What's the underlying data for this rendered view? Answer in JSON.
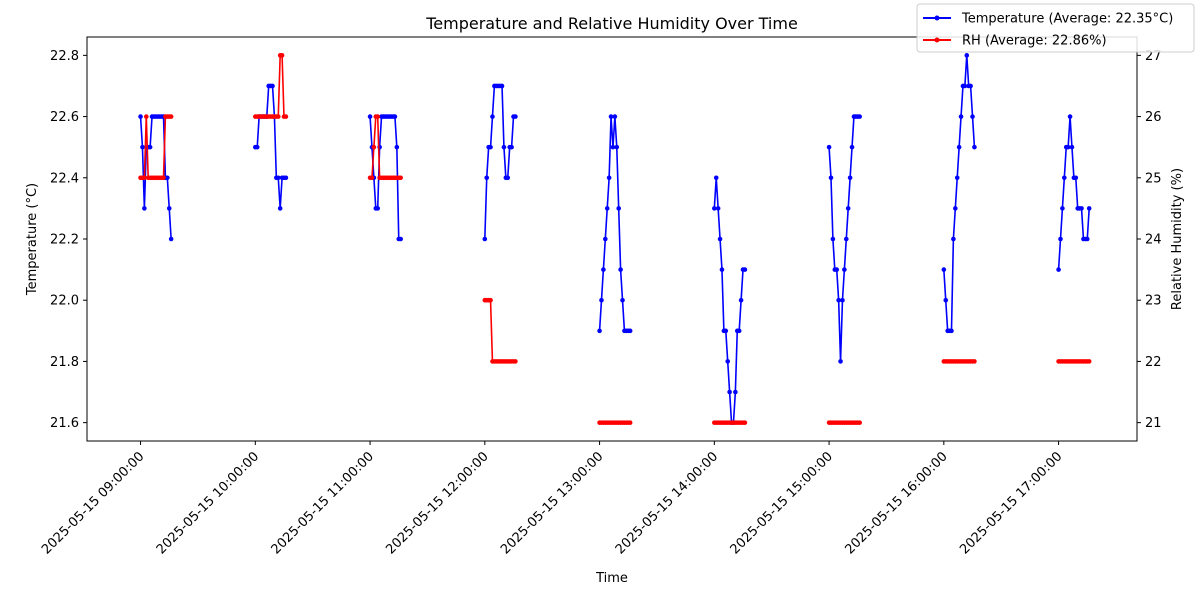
{
  "chart_data": {
    "type": "line",
    "title": "Temperature and Relative Humidity Over Time",
    "xlabel": "Time",
    "ylabel_left": "Temperature (°C)",
    "ylabel_right": "Relative Humidity (%)",
    "x_ticks": [
      "2025-05-15 09:00:00",
      "2025-05-15 10:00:00",
      "2025-05-15 11:00:00",
      "2025-05-15 12:00:00",
      "2025-05-15 13:00:00",
      "2025-05-15 14:00:00",
      "2025-05-15 15:00:00",
      "2025-05-15 16:00:00",
      "2025-05-15 17:00:00"
    ],
    "x_range": [
      "2025-05-15 08:32:00",
      "2025-05-15 17:41:00"
    ],
    "y_left_range": [
      21.54,
      22.86
    ],
    "y_left_ticks": [
      "21.6",
      "21.8",
      "22.0",
      "22.2",
      "22.4",
      "22.6",
      "22.8"
    ],
    "y_right_range": [
      20.7,
      27.3
    ],
    "y_right_ticks": [
      "21",
      "22",
      "23",
      "24",
      "25",
      "26",
      "27"
    ],
    "legend_position": "top-right",
    "grid": false,
    "series": [
      {
        "name": "Temperature (Average: 22.35°C)",
        "color": "#0000ff",
        "axis": "left",
        "segments": [
          {
            "x": [
              "09:00",
              "09:01",
              "09:02",
              "09:03",
              "09:04",
              "09:05",
              "09:06",
              "09:07",
              "09:08",
              "09:09",
              "09:10",
              "09:11",
              "09:12",
              "09:13",
              "09:14",
              "09:15",
              "09:16"
            ],
            "y": [
              22.6,
              22.5,
              22.3,
              22.5,
              22.5,
              22.5,
              22.6,
              22.6,
              22.6,
              22.6,
              22.6,
              22.6,
              22.6,
              22.4,
              22.4,
              22.3,
              22.2
            ]
          },
          {
            "x": [
              "10:00",
              "10:01",
              "10:02",
              "10:03",
              "10:04",
              "10:05",
              "10:06",
              "10:07",
              "10:08",
              "10:09",
              "10:10",
              "10:11",
              "10:12",
              "10:13",
              "10:14",
              "10:15",
              "10:16"
            ],
            "y": [
              22.5,
              22.5,
              22.6,
              22.6,
              22.6,
              22.6,
              22.6,
              22.7,
              22.7,
              22.7,
              22.6,
              22.4,
              22.4,
              22.3,
              22.4,
              22.4,
              22.4
            ]
          },
          {
            "x": [
              "11:00",
              "11:01",
              "11:02",
              "11:03",
              "11:04",
              "11:05",
              "11:06",
              "11:07",
              "11:08",
              "11:09",
              "11:10",
              "11:11",
              "11:12",
              "11:13",
              "11:14",
              "11:15",
              "11:16"
            ],
            "y": [
              22.6,
              22.5,
              22.4,
              22.3,
              22.3,
              22.5,
              22.6,
              22.6,
              22.6,
              22.6,
              22.6,
              22.6,
              22.6,
              22.6,
              22.5,
              22.2,
              22.2
            ]
          },
          {
            "x": [
              "12:00",
              "12:01",
              "12:02",
              "12:03",
              "12:04",
              "12:05",
              "12:06",
              "12:07",
              "12:08",
              "12:09",
              "12:10",
              "12:11",
              "12:12",
              "12:13",
              "12:14",
              "12:15",
              "12:16"
            ],
            "y": [
              22.2,
              22.4,
              22.5,
              22.5,
              22.6,
              22.7,
              22.7,
              22.7,
              22.7,
              22.7,
              22.5,
              22.4,
              22.4,
              22.5,
              22.5,
              22.6,
              22.6
            ]
          },
          {
            "x": [
              "13:00",
              "13:01",
              "13:02",
              "13:03",
              "13:04",
              "13:05",
              "13:06",
              "13:07",
              "13:08",
              "13:09",
              "13:10",
              "13:11",
              "13:12",
              "13:13",
              "13:14",
              "13:15",
              "13:16"
            ],
            "y": [
              21.9,
              22.0,
              22.1,
              22.2,
              22.3,
              22.4,
              22.6,
              22.5,
              22.6,
              22.5,
              22.3,
              22.1,
              22.0,
              21.9,
              21.9,
              21.9,
              21.9
            ]
          },
          {
            "x": [
              "14:00",
              "14:01",
              "14:02",
              "14:03",
              "14:04",
              "14:05",
              "14:06",
              "14:07",
              "14:08",
              "14:09",
              "14:10",
              "14:11",
              "14:12",
              "14:13",
              "14:14",
              "14:15",
              "14:16"
            ],
            "y": [
              22.3,
              22.4,
              22.3,
              22.2,
              22.1,
              21.9,
              21.9,
              21.8,
              21.7,
              21.6,
              21.6,
              21.7,
              21.9,
              21.9,
              22.0,
              22.1,
              22.1
            ]
          },
          {
            "x": [
              "15:00",
              "15:01",
              "15:02",
              "15:03",
              "15:04",
              "15:05",
              "15:06",
              "15:07",
              "15:08",
              "15:09",
              "15:10",
              "15:11",
              "15:12",
              "15:13",
              "15:14",
              "15:15",
              "15:16"
            ],
            "y": [
              22.5,
              22.4,
              22.2,
              22.1,
              22.1,
              22.0,
              21.8,
              22.0,
              22.1,
              22.2,
              22.3,
              22.4,
              22.5,
              22.6,
              22.6,
              22.6,
              22.6
            ]
          },
          {
            "x": [
              "16:00",
              "16:01",
              "16:02",
              "16:03",
              "16:04",
              "16:05",
              "16:06",
              "16:07",
              "16:08",
              "16:09",
              "16:10",
              "16:11",
              "16:12",
              "16:13",
              "16:14",
              "16:15",
              "16:16"
            ],
            "y": [
              22.1,
              22.0,
              21.9,
              21.9,
              21.9,
              22.2,
              22.3,
              22.4,
              22.5,
              22.6,
              22.7,
              22.7,
              22.8,
              22.7,
              22.7,
              22.6,
              22.5
            ]
          },
          {
            "x": [
              "17:00",
              "17:01",
              "17:02",
              "17:03",
              "17:04",
              "17:05",
              "17:06",
              "17:07",
              "17:08",
              "17:09",
              "17:10",
              "17:11",
              "17:12",
              "17:13",
              "17:14",
              "17:15",
              "17:16"
            ],
            "y": [
              22.1,
              22.2,
              22.3,
              22.4,
              22.5,
              22.5,
              22.6,
              22.5,
              22.4,
              22.4,
              22.3,
              22.3,
              22.3,
              22.2,
              22.2,
              22.2,
              22.3
            ]
          }
        ]
      },
      {
        "name": "RH (Average: 22.86%)",
        "color": "#ff0000",
        "axis": "right",
        "segments": [
          {
            "x": [
              "09:00",
              "09:01",
              "09:02",
              "09:03",
              "09:04",
              "09:05",
              "09:06",
              "09:07",
              "09:08",
              "09:09",
              "09:10",
              "09:11",
              "09:12",
              "09:13",
              "09:14",
              "09:15",
              "09:16"
            ],
            "y": [
              25,
              25,
              25,
              26,
              25,
              25,
              25,
              25,
              25,
              25,
              25,
              25,
              25,
              26,
              26,
              26,
              26
            ]
          },
          {
            "x": [
              "10:00",
              "10:01",
              "10:02",
              "10:03",
              "10:04",
              "10:05",
              "10:06",
              "10:07",
              "10:08",
              "10:09",
              "10:10",
              "10:11",
              "10:12",
              "10:13",
              "10:14",
              "10:15",
              "10:16"
            ],
            "y": [
              26,
              26,
              26,
              26,
              26,
              26,
              26,
              26,
              26,
              26,
              26,
              26,
              26,
              27,
              27,
              26,
              26
            ]
          },
          {
            "x": [
              "11:00",
              "11:01",
              "11:02",
              "11:03",
              "11:04",
              "11:05",
              "11:06",
              "11:07",
              "11:08",
              "11:09",
              "11:10",
              "11:11",
              "11:12",
              "11:13",
              "11:14",
              "11:15",
              "11:16"
            ],
            "y": [
              25,
              25,
              25.5,
              26,
              26,
              25,
              25,
              25,
              25,
              25,
              25,
              25,
              25,
              25,
              25,
              25,
              25
            ]
          },
          {
            "x": [
              "12:00",
              "12:01",
              "12:02",
              "12:03",
              "12:04",
              "12:05",
              "12:06",
              "12:07",
              "12:08",
              "12:09",
              "12:10",
              "12:11",
              "12:12",
              "12:13",
              "12:14",
              "12:15",
              "12:16"
            ],
            "y": [
              23,
              23,
              23,
              23,
              22,
              22,
              22,
              22,
              22,
              22,
              22,
              22,
              22,
              22,
              22,
              22,
              22
            ]
          },
          {
            "x": [
              "13:00",
              "13:01",
              "13:02",
              "13:03",
              "13:04",
              "13:05",
              "13:06",
              "13:07",
              "13:08",
              "13:09",
              "13:10",
              "13:11",
              "13:12",
              "13:13",
              "13:14",
              "13:15",
              "13:16"
            ],
            "y": [
              21,
              21,
              21,
              21,
              21,
              21,
              21,
              21,
              21,
              21,
              21,
              21,
              21,
              21,
              21,
              21,
              21
            ]
          },
          {
            "x": [
              "14:00",
              "14:01",
              "14:02",
              "14:03",
              "14:04",
              "14:05",
              "14:06",
              "14:07",
              "14:08",
              "14:09",
              "14:10",
              "14:11",
              "14:12",
              "14:13",
              "14:14",
              "14:15",
              "14:16"
            ],
            "y": [
              21,
              21,
              21,
              21,
              21,
              21,
              21,
              21,
              21,
              21,
              21,
              21,
              21,
              21,
              21,
              21,
              21
            ]
          },
          {
            "x": [
              "15:00",
              "15:01",
              "15:02",
              "15:03",
              "15:04",
              "15:05",
              "15:06",
              "15:07",
              "15:08",
              "15:09",
              "15:10",
              "15:11",
              "15:12",
              "15:13",
              "15:14",
              "15:15",
              "15:16"
            ],
            "y": [
              21,
              21,
              21,
              21,
              21,
              21,
              21,
              21,
              21,
              21,
              21,
              21,
              21,
              21,
              21,
              21,
              21
            ]
          },
          {
            "x": [
              "16:00",
              "16:01",
              "16:02",
              "16:03",
              "16:04",
              "16:05",
              "16:06",
              "16:07",
              "16:08",
              "16:09",
              "16:10",
              "16:11",
              "16:12",
              "16:13",
              "16:14",
              "16:15",
              "16:16"
            ],
            "y": [
              22,
              22,
              22,
              22,
              22,
              22,
              22,
              22,
              22,
              22,
              22,
              22,
              22,
              22,
              22,
              22,
              22
            ]
          },
          {
            "x": [
              "17:00",
              "17:01",
              "17:02",
              "17:03",
              "17:04",
              "17:05",
              "17:06",
              "17:07",
              "17:08",
              "17:09",
              "17:10",
              "17:11",
              "17:12",
              "17:13",
              "17:14",
              "17:15",
              "17:16"
            ],
            "y": [
              22,
              22,
              22,
              22,
              22,
              22,
              22,
              22,
              22,
              22,
              22,
              22,
              22,
              22,
              22,
              22,
              22
            ]
          }
        ]
      }
    ]
  }
}
